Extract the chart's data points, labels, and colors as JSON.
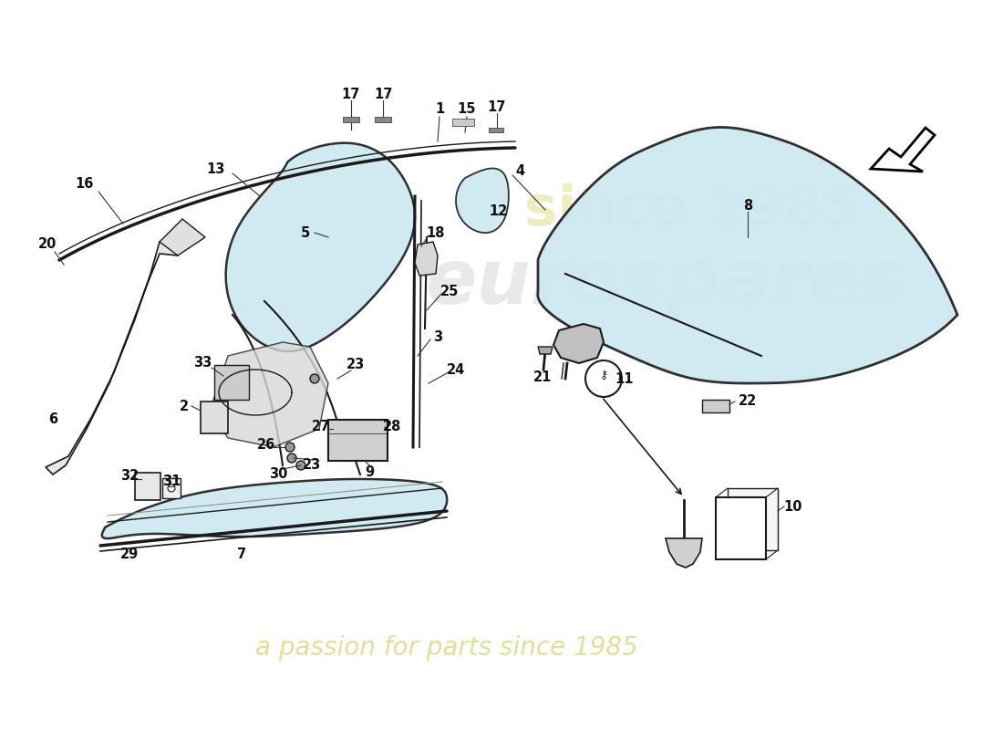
{
  "bg_color": "#ffffff",
  "glass_color": "#cce8f0",
  "glass_edge_color": "#1a1a1a",
  "line_color": "#1a1a1a",
  "label_color": "#111111",
  "watermark1_text": "eurospares",
  "watermark1_color": "#d0d0d0",
  "watermark2_text": "since 1985",
  "watermark2_color": "#e0e066",
  "watermark3_text": "a passion for parts since 1985",
  "watermark3_color": "#c8c840"
}
